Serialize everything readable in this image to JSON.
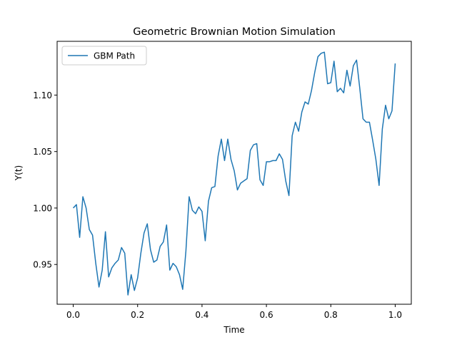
{
  "chart_data": {
    "type": "line",
    "title": "Geometric Brownian Motion Simulation",
    "xlabel": "Time",
    "ylabel": "Y(t)",
    "xlim": [
      -0.05,
      1.05
    ],
    "ylim": [
      0.9148,
      1.1476
    ],
    "xticks": [
      0.0,
      0.2,
      0.4,
      0.6,
      0.8,
      1.0
    ],
    "xtick_labels": [
      "0.0",
      "0.2",
      "0.4",
      "0.6",
      "0.8",
      "1.0"
    ],
    "yticks": [
      0.95,
      1.0,
      1.05,
      1.1
    ],
    "ytick_labels": [
      "0.95",
      "1.00",
      "1.05",
      "1.10"
    ],
    "grid": false,
    "legend_position": "upper-left",
    "series": [
      {
        "name": "GBM Path",
        "color": "#1f77b4",
        "x": [
          0.0,
          0.01,
          0.02,
          0.03,
          0.04,
          0.05,
          0.06,
          0.07,
          0.08,
          0.09,
          0.1,
          0.11,
          0.12,
          0.13,
          0.14,
          0.15,
          0.16,
          0.17,
          0.18,
          0.19,
          0.2,
          0.21,
          0.22,
          0.23,
          0.24,
          0.25,
          0.26,
          0.27,
          0.28,
          0.29,
          0.3,
          0.31,
          0.32,
          0.33,
          0.34,
          0.35,
          0.36,
          0.37,
          0.38,
          0.39,
          0.4,
          0.41,
          0.42,
          0.43,
          0.44,
          0.45,
          0.46,
          0.47,
          0.48,
          0.49,
          0.5,
          0.51,
          0.52,
          0.53,
          0.54,
          0.55,
          0.56,
          0.57,
          0.58,
          0.59,
          0.6,
          0.61,
          0.62,
          0.63,
          0.64,
          0.65,
          0.66,
          0.67,
          0.68,
          0.69,
          0.7,
          0.71,
          0.72,
          0.73,
          0.74,
          0.75,
          0.76,
          0.77,
          0.78,
          0.79,
          0.8,
          0.81,
          0.82,
          0.83,
          0.84,
          0.85,
          0.86,
          0.87,
          0.88,
          0.89,
          0.9,
          0.91,
          0.92,
          0.93,
          0.94,
          0.95,
          0.96,
          0.97,
          0.98,
          0.99,
          1.0
        ],
        "y": [
          1.0,
          1.003,
          0.974,
          1.01,
          1.0,
          0.981,
          0.976,
          0.951,
          0.93,
          0.945,
          0.979,
          0.939,
          0.947,
          0.951,
          0.954,
          0.965,
          0.96,
          0.923,
          0.941,
          0.927,
          0.938,
          0.96,
          0.978,
          0.986,
          0.963,
          0.952,
          0.954,
          0.966,
          0.97,
          0.985,
          0.945,
          0.951,
          0.948,
          0.941,
          0.928,
          0.962,
          1.01,
          0.998,
          0.995,
          1.001,
          0.997,
          0.971,
          1.006,
          1.018,
          1.019,
          1.046,
          1.061,
          1.042,
          1.061,
          1.043,
          1.033,
          1.016,
          1.022,
          1.024,
          1.026,
          1.051,
          1.056,
          1.057,
          1.025,
          1.02,
          1.041,
          1.041,
          1.042,
          1.042,
          1.048,
          1.043,
          1.024,
          1.011,
          1.064,
          1.076,
          1.068,
          1.085,
          1.094,
          1.092,
          1.104,
          1.12,
          1.134,
          1.137,
          1.138,
          1.11,
          1.111,
          1.13,
          1.103,
          1.106,
          1.102,
          1.122,
          1.108,
          1.126,
          1.131,
          1.106,
          1.079,
          1.076,
          1.076,
          1.06,
          1.043,
          1.02,
          1.07,
          1.091,
          1.079,
          1.086,
          1.128
        ]
      }
    ]
  }
}
